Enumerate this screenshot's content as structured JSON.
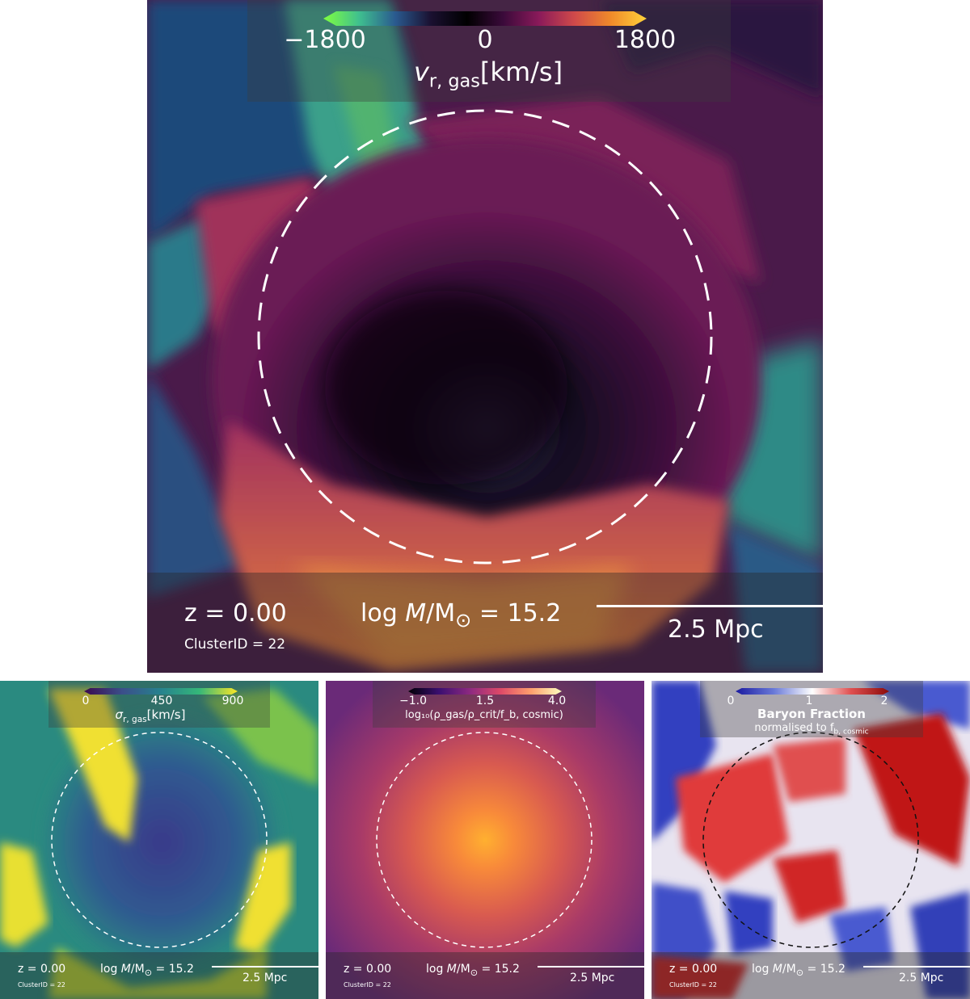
{
  "main_panel": {
    "colorbar": {
      "ticks": [
        "−1800",
        "0",
        "1800"
      ],
      "label_symbol": "v",
      "label_sub": "r, gas",
      "label_unit": "[km/s]",
      "gradient": [
        "#7fff3f",
        "#3fbf8f",
        "#2a5a8f",
        "#1a1030",
        "#000000",
        "#3a0a3a",
        "#8a1a5a",
        "#d04a4a",
        "#f08a2a",
        "#ffd23a"
      ]
    },
    "redshift": "z = 0.00",
    "cluster_id": "ClusterID = 22",
    "mass_prefix": "log",
    "mass_symbol": "M",
    "mass_unit": "/M",
    "mass_sun": "⊙",
    "mass_value": " = 15.2",
    "scale": "2.5 Mpc"
  },
  "panel_sigma": {
    "colorbar": {
      "ticks": [
        "0",
        "450",
        "900"
      ],
      "label_symbol": "σ",
      "label_sub": "r, gas",
      "label_unit": "[km/s]",
      "gradient": [
        "#3b0a4f",
        "#3b4f8a",
        "#26828e",
        "#35b779",
        "#fde725"
      ]
    },
    "redshift": "z = 0.00",
    "cluster_id": "ClusterID = 22",
    "mass_prefix": "log",
    "mass_symbol": "M",
    "mass_unit": "/M",
    "mass_sun": "⊙",
    "mass_value": " = 15.2",
    "scale": "2.5 Mpc"
  },
  "panel_density": {
    "colorbar": {
      "ticks": [
        "−1.0",
        "1.5",
        "4.0"
      ],
      "label": "log₁₀(ρ_gas/ρ_crit/f_b, cosmic)",
      "gradient": [
        "#000004",
        "#3b0f70",
        "#8c2981",
        "#de4968",
        "#fe9f6d",
        "#fcfdbf"
      ]
    },
    "redshift": "z = 0.00",
    "cluster_id": "ClusterID = 22",
    "mass_prefix": "log",
    "mass_symbol": "M",
    "mass_unit": "/M",
    "mass_sun": "⊙",
    "mass_value": " = 15.2",
    "scale": "2.5 Mpc"
  },
  "panel_baryon": {
    "colorbar": {
      "ticks": [
        "0",
        "1",
        "2"
      ],
      "title": "Baryon Fraction",
      "subtitle_prefix": "normalised to f",
      "subtitle_sub": "b, cosmic",
      "gradient": [
        "#1a1aa0",
        "#6a7ad8",
        "#ffffff",
        "#e05050",
        "#8a0a0a"
      ]
    },
    "redshift": "z = 0.00",
    "cluster_id": "ClusterID = 22",
    "mass_prefix": "log",
    "mass_symbol": "M",
    "mass_unit": "/M",
    "mass_sun": "⊙",
    "mass_value": " = 15.2",
    "scale": "2.5 Mpc"
  }
}
